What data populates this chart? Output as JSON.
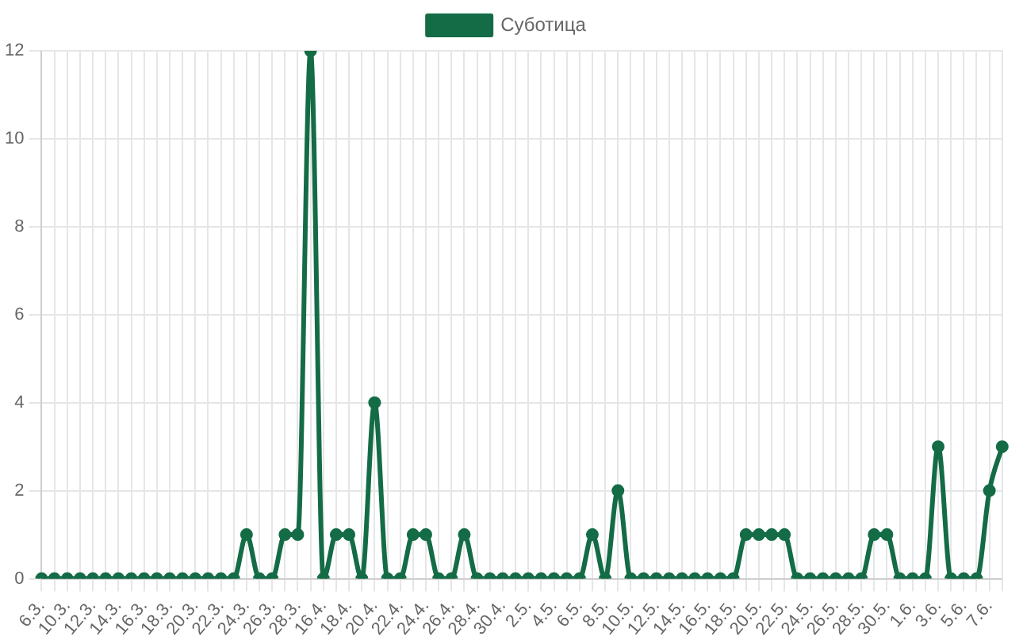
{
  "chart_data": {
    "type": "line",
    "categories": [
      "6.3.",
      null,
      "10.3.",
      null,
      "12.3.",
      null,
      "14.3.",
      null,
      "16.3.",
      null,
      "18.3.",
      null,
      "20.3.",
      null,
      "22.3.",
      null,
      "24.3.",
      null,
      "26.3.",
      null,
      "28.3.",
      null,
      "16.4.",
      null,
      "18.4.",
      null,
      "20.4.",
      null,
      "22.4.",
      null,
      "24.4.",
      null,
      "26.4.",
      null,
      "28.4.",
      null,
      "30.4.",
      null,
      "2.5.",
      null,
      "4.5.",
      null,
      "6.5.",
      null,
      "8.5.",
      null,
      "10.5.",
      null,
      "12.5.",
      null,
      "14.5.",
      null,
      "16.5.",
      null,
      "18.5.",
      null,
      "20.5.",
      null,
      "22.5.",
      null,
      "24.5.",
      null,
      "26.5.",
      null,
      "28.5.",
      null,
      "30.5.",
      null,
      "1.6.",
      null,
      "3.6.",
      null,
      "5.6.",
      null,
      "7.6.",
      null
    ],
    "series": [
      {
        "name": "Суботица",
        "color": "#146c46",
        "values": [
          0,
          0,
          0,
          0,
          0,
          0,
          0,
          0,
          0,
          0,
          0,
          0,
          0,
          0,
          0,
          0,
          1,
          0,
          0,
          1,
          1,
          12,
          0,
          1,
          1,
          0,
          4,
          0,
          0,
          1,
          1,
          0,
          0,
          1,
          0,
          0,
          0,
          0,
          0,
          0,
          0,
          0,
          0,
          1,
          0,
          2,
          0,
          0,
          0,
          0,
          0,
          0,
          0,
          0,
          0,
          1,
          1,
          1,
          1,
          0,
          0,
          0,
          0,
          0,
          0,
          1,
          1,
          0,
          0,
          0,
          3,
          0,
          0,
          0,
          2,
          3
        ]
      }
    ],
    "ylim": [
      0,
      12
    ],
    "yticks": [
      0,
      2,
      4,
      6,
      8,
      10,
      12
    ],
    "grid": true,
    "legend": "top",
    "marker": "circle",
    "line_style": "solid"
  }
}
